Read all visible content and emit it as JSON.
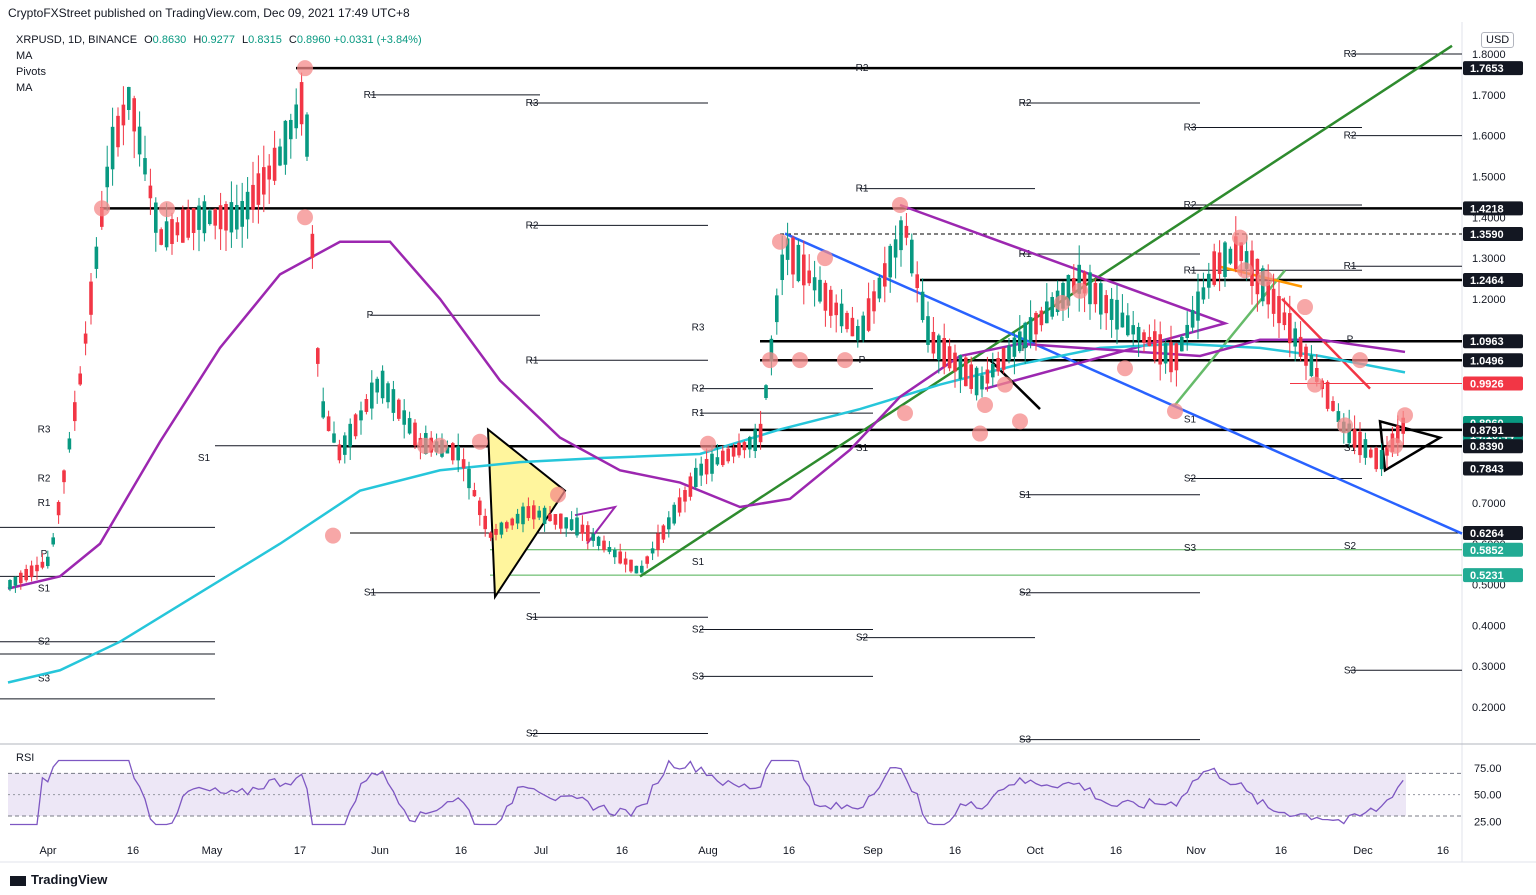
{
  "header": {
    "publisher": "CryptoFXStreet published on TradingView.com, Dec 09, 2021 17:49 UTC+8"
  },
  "legend": {
    "symbol": "XRPUSD, 1D, BINANCE",
    "open_label": "O",
    "open": "0.8630",
    "high_label": "H",
    "high": "0.9277",
    "low_label": "L",
    "low": "0.8315",
    "close_label": "C",
    "close": "0.8960",
    "change": "+0.0331 (+3.84%)",
    "indicators": [
      "MA",
      "Pivots",
      "MA"
    ]
  },
  "currency": "USD",
  "rsi_label": "RSI",
  "footer": {
    "brand": "TradingView"
  },
  "chart_data": {
    "type": "candlestick",
    "symbol": "XRPUSD",
    "interval": "1D",
    "exchange": "BINANCE",
    "price_axis": {
      "ticks": [
        "1.8000",
        "1.7000",
        "1.6000",
        "1.5000",
        "1.4000",
        "1.3000",
        "1.2000",
        "0.7000",
        "0.6000",
        "0.5000",
        "0.4000",
        "0.3000",
        "0.2000"
      ],
      "range": [
        0.12,
        1.82
      ]
    },
    "time_axis": {
      "labels": [
        "Apr",
        "16",
        "May",
        "17",
        "Jun",
        "16",
        "Jul",
        "16",
        "Aug",
        "16",
        "Sep",
        "16",
        "Oct",
        "16",
        "Nov",
        "16",
        "Dec",
        "16"
      ]
    },
    "price_badges": [
      {
        "value": "1.7653",
        "color": "#131722"
      },
      {
        "value": "1.4218",
        "color": "#131722"
      },
      {
        "value": "1.3590",
        "color": "#131722"
      },
      {
        "value": "1.2464",
        "color": "#131722"
      },
      {
        "value": "1.0963",
        "color": "#131722"
      },
      {
        "value": "1.0496",
        "color": "#131722"
      },
      {
        "value": "0.9926",
        "color": "#f23645"
      },
      {
        "value": "0.8960",
        "color": "#089981",
        "sub": "14:10:44"
      },
      {
        "value": "0.8791",
        "color": "#131722"
      },
      {
        "value": "0.8390",
        "color": "#131722"
      },
      {
        "value": "0.7843",
        "color": "#131722"
      },
      {
        "value": "0.6264",
        "color": "#131722"
      },
      {
        "value": "0.5852",
        "color": "#22ab94"
      },
      {
        "value": "0.5231",
        "color": "#22ab94"
      }
    ],
    "horizontal_levels": [
      1.7653,
      1.4218,
      1.359,
      1.2464,
      1.0963,
      1.0496,
      0.9926,
      0.8791,
      0.839,
      0.7843,
      0.6264,
      0.5852,
      0.5231
    ],
    "pivot_labels": [
      "R3",
      "R2",
      "R1",
      "P",
      "S1",
      "S2",
      "S3"
    ],
    "rsi": {
      "ticks": [
        "75.00",
        "50.00",
        "25.00"
      ],
      "range": [
        15,
        90
      ],
      "upper": 70,
      "lower": 30
    },
    "colors": {
      "up": "#089981",
      "down": "#f23645",
      "ma_purple": "#9c27b0",
      "ma_teal": "#26c6da",
      "trend_green": "#2e8b2e",
      "trend_blue": "#2962ff",
      "rsi_line": "#7e57c2",
      "rsi_band": "#ede7f6"
    }
  }
}
